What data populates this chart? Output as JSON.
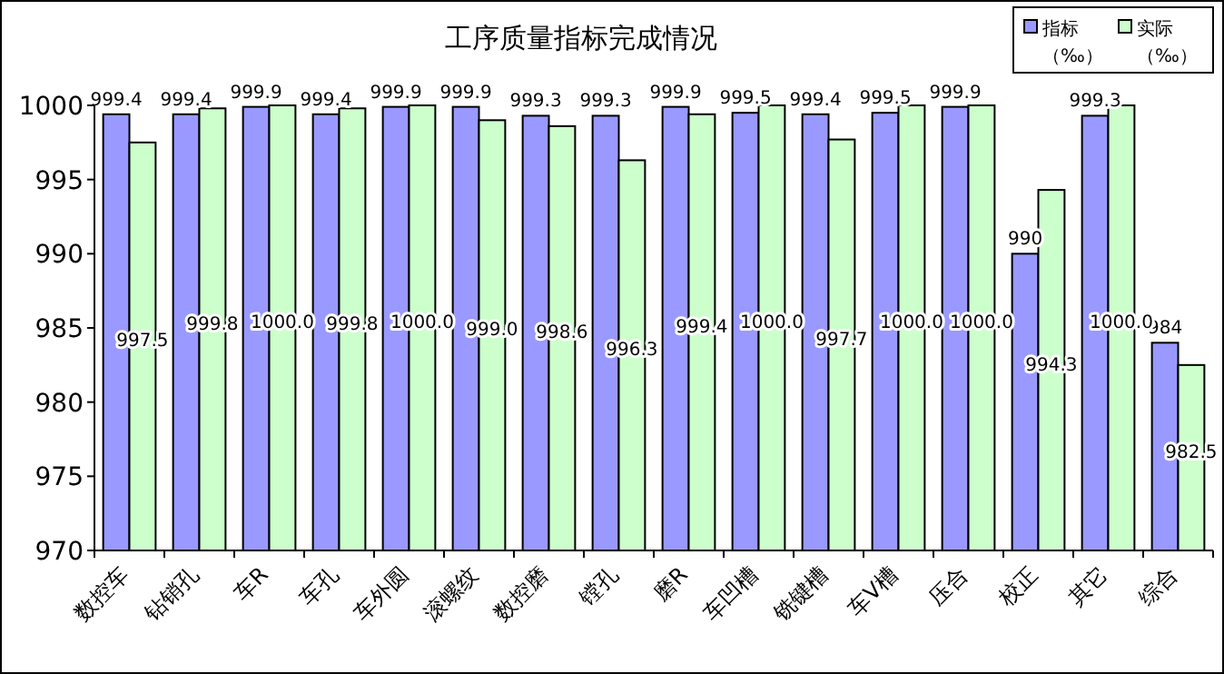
{
  "chart_data": {
    "type": "bar",
    "title": "工序质量指标完成情况",
    "categories": [
      "数控车",
      "钻销孔",
      "车R",
      "车孔",
      "车外圆",
      "滚螺纹",
      "数控磨",
      "镗孔",
      "磨R",
      "车凹槽",
      "铣键槽",
      "车V槽",
      "压合",
      "校正",
      "其它",
      "综合"
    ],
    "series": [
      {
        "name": "指标（‰）",
        "color": "#9999ff",
        "values": [
          999.4,
          999.4,
          999.9,
          999.4,
          999.9,
          999.9,
          999.3,
          999.3,
          999.9,
          999.5,
          999.4,
          999.5,
          999.9,
          990,
          999.3,
          984
        ],
        "value_labels": [
          "999.4",
          "999.4",
          "999.9",
          "999.4",
          "999.9",
          "999.9",
          "999.3",
          "999.3",
          "999.9",
          "999.5",
          "999.4",
          "999.5",
          "999.9",
          "990",
          "999.3",
          "984"
        ]
      },
      {
        "name": "实际（‰）",
        "color": "#ccffcc",
        "values": [
          997.5,
          999.8,
          1000.0,
          999.8,
          1000.0,
          999.0,
          998.6,
          996.3,
          999.4,
          1000.0,
          997.7,
          1000.0,
          1000.0,
          994.3,
          1000.0,
          982.5
        ],
        "value_labels": [
          "997.5",
          "999.8",
          "1000.0",
          "999.8",
          "1000.0",
          "999.0",
          "998.6",
          "996.3",
          "999.4",
          "1000.0",
          "997.7",
          "1000.0",
          "1000.0",
          "994.3",
          "1000.0",
          "982.5"
        ]
      }
    ],
    "ylim": [
      970,
      1000
    ],
    "yticks": [
      970,
      975,
      980,
      985,
      990,
      995,
      1000
    ],
    "grid": false,
    "legend": "top right"
  }
}
